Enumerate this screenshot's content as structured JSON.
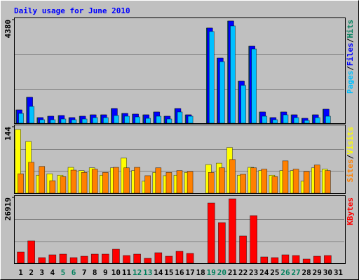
{
  "chart_data": [
    {
      "type": "bar",
      "title": "Daily usage for June 2010",
      "title_color": "#0000ff",
      "ylim": [
        0,
        4380
      ],
      "yticks": [
        4380
      ],
      "legend_separator": "/",
      "series": [
        {
          "name": "Hits",
          "color": "#00805c",
          "values": [
            562,
            1095,
            237,
            296,
            325,
            237,
            296,
            355,
            355,
            621,
            414,
            385,
            355,
            474,
            296,
            621,
            355,
            0,
            4025,
            2752,
            4321,
            1776,
            3255,
            474,
            237,
            474,
            355,
            207,
            355,
            592,
            0
          ]
        },
        {
          "name": "Files",
          "color": "#0000ff",
          "values": [
            562,
            1095,
            237,
            296,
            325,
            237,
            296,
            355,
            355,
            621,
            414,
            385,
            355,
            474,
            296,
            621,
            355,
            0,
            4025,
            2752,
            4321,
            1776,
            3255,
            474,
            237,
            474,
            355,
            207,
            355,
            592,
            0
          ]
        },
        {
          "name": "Pages",
          "color": "#00c0ff",
          "values": [
            414,
            710,
            148,
            148,
            178,
            148,
            178,
            237,
            237,
            325,
            296,
            266,
            207,
            296,
            178,
            474,
            296,
            0,
            3877,
            2604,
            4114,
            1598,
            3137,
            296,
            148,
            355,
            237,
            118,
            237,
            296,
            0
          ]
        }
      ]
    },
    {
      "type": "bar",
      "ylim": [
        0,
        144
      ],
      "yticks": [
        144
      ],
      "legend_separator": "/",
      "series": [
        {
          "name": "Visits",
          "color": "#ffff00",
          "values": [
            138,
            112,
            39,
            42,
            39,
            56,
            49,
            55,
            39,
            55,
            76,
            49,
            26,
            45,
            38,
            39,
            45,
            0,
            62,
            65,
            99,
            39,
            56,
            49,
            39,
            49,
            49,
            26,
            55,
            52,
            0
          ]
        },
        {
          "name": "Sites",
          "color": "#ff8000",
          "values": [
            42,
            67,
            58,
            27,
            36,
            50,
            45,
            52,
            45,
            56,
            55,
            56,
            38,
            55,
            45,
            49,
            47,
            0,
            45,
            55,
            73,
            41,
            55,
            52,
            36,
            70,
            52,
            47,
            61,
            49,
            0
          ]
        }
      ]
    },
    {
      "type": "bar",
      "ylim": [
        0,
        26919
      ],
      "yticks": [
        26919
      ],
      "series": [
        {
          "name": "KBytes",
          "color": "#ff0000",
          "values": [
            4582,
            9164,
            2291,
            3437,
            3723,
            2291,
            2864,
            3723,
            3723,
            5728,
            3150,
            3723,
            2005,
            4296,
            2864,
            4868,
            4009,
            0,
            24628,
            16610,
            26346,
            11169,
            19474,
            2577,
            2291,
            3437,
            3150,
            1718,
            2864,
            3150,
            0
          ]
        }
      ],
      "categories": [
        "1",
        "2",
        "3",
        "4",
        "5",
        "6",
        "7",
        "8",
        "9",
        "10",
        "11",
        "12",
        "13",
        "14",
        "15",
        "16",
        "17",
        "18",
        "19",
        "20",
        "21",
        "22",
        "23",
        "24",
        "25",
        "26",
        "27",
        "28",
        "29",
        "30",
        "31"
      ],
      "category_colors": [
        "#000000",
        "#000000",
        "#000000",
        "#000000",
        "#00805c",
        "#00805c",
        "#000000",
        "#000000",
        "#000000",
        "#000000",
        "#000000",
        "#00805c",
        "#00805c",
        "#000000",
        "#000000",
        "#000000",
        "#000000",
        "#000000",
        "#00805c",
        "#00805c",
        "#000000",
        "#000000",
        "#000000",
        "#000000",
        "#000000",
        "#00805c",
        "#00805c",
        "#000000",
        "#000000",
        "#000000",
        "#000000"
      ]
    }
  ]
}
